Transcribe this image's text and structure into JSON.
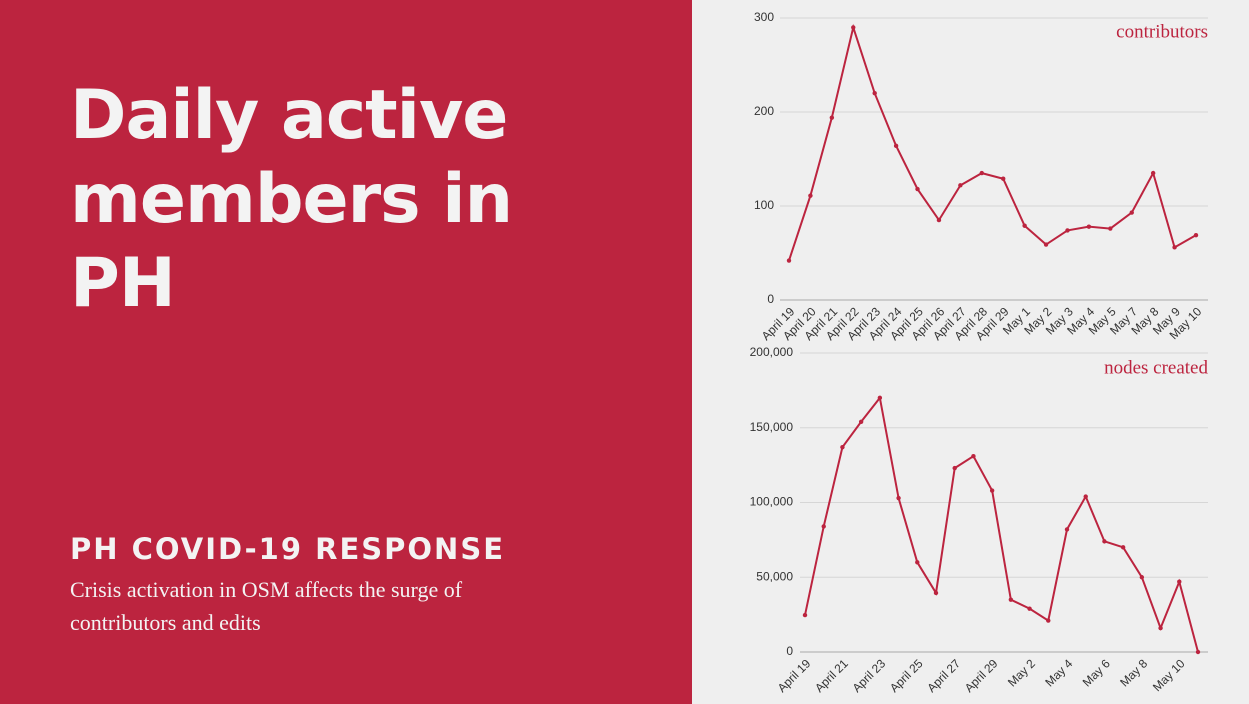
{
  "slide": {
    "title": "Daily active members in PH",
    "subtitle": "PH COVID-19 RESPONSE",
    "description": "Crisis activation in OSM affects the surge of contributors and edits"
  },
  "chart_data": [
    {
      "type": "line",
      "title": "contributors",
      "categories": [
        "April 19",
        "April 20",
        "April 21",
        "April 22",
        "April 23",
        "April 24",
        "April 25",
        "April 26",
        "April 27",
        "April 28",
        "April 29",
        "May 1",
        "May 2",
        "May 3",
        "May 4",
        "May 5",
        "May 7",
        "May 8",
        "May 9",
        "May 10"
      ],
      "series": [
        {
          "name": "contributors",
          "color": "#bc243f",
          "values": [
            42,
            111,
            194,
            290,
            220,
            164,
            118,
            85,
            122,
            135,
            129,
            79,
            59,
            74,
            78,
            76,
            93,
            135,
            56,
            69
          ]
        }
      ],
      "ylim": [
        0,
        300
      ],
      "yticks": [
        0,
        100,
        200,
        300
      ],
      "grid": true
    },
    {
      "type": "line",
      "title": "nodes created",
      "categories": [
        "April 19",
        null,
        "April 21",
        null,
        "April 23",
        null,
        "April 25",
        null,
        "April 27",
        null,
        "April 29",
        null,
        "May 2",
        null,
        "May 4",
        null,
        "May 6",
        null,
        "May 8",
        null,
        "May 10",
        null
      ],
      "series": [
        {
          "name": "nodes created",
          "color": "#bc243f",
          "values": [
            24700,
            84000,
            137000,
            154000,
            170000,
            103000,
            60000,
            39500,
            123000,
            131000,
            108000,
            35000,
            29000,
            21000,
            82000,
            104000,
            74000,
            70000,
            50000,
            16000,
            47000,
            0
          ]
        }
      ],
      "ylim": [
        0,
        200000
      ],
      "yticks": [
        0,
        {
          "value": 50000,
          "label": "50,000"
        },
        {
          "value": 100000,
          "label": "100,000"
        },
        {
          "value": 150000,
          "label": "150,000"
        },
        {
          "value": 200000,
          "label": "200,000"
        }
      ],
      "grid": true
    }
  ]
}
